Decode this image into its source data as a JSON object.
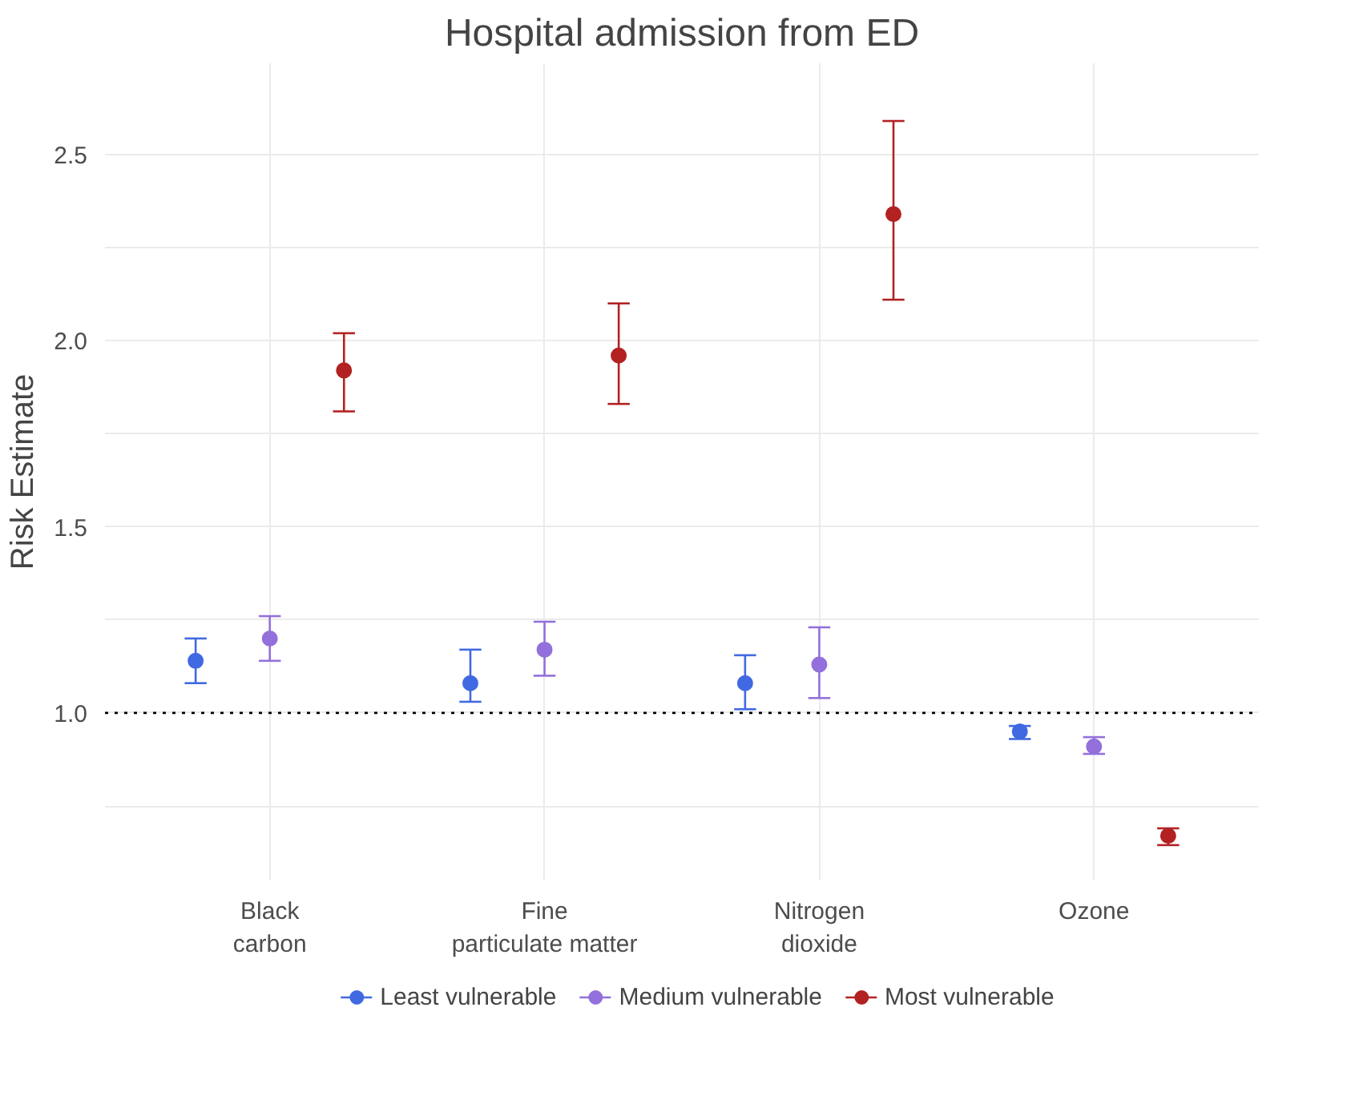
{
  "chart_data": {
    "type": "scatter",
    "title": "Hospital admission from ED",
    "ylabel": "Risk Estimate",
    "categories": [
      "Black\ncarbon",
      "Fine\nparticulate matter",
      "Nitrogen\ndioxide",
      "Ozone"
    ],
    "series": [
      {
        "name": "Least vulnerable",
        "color": "#4169e1",
        "values": [
          1.14,
          1.08,
          1.08,
          0.95
        ],
        "errors": [
          [
            1.08,
            1.2
          ],
          [
            1.03,
            1.17
          ],
          [
            1.01,
            1.155
          ],
          [
            0.93,
            0.965
          ]
        ]
      },
      {
        "name": "Medium vulnerable",
        "color": "#9370db",
        "values": [
          1.2,
          1.17,
          1.13,
          0.91
        ],
        "errors": [
          [
            1.14,
            1.26
          ],
          [
            1.1,
            1.245
          ],
          [
            1.04,
            1.23
          ],
          [
            0.89,
            0.935
          ]
        ]
      },
      {
        "name": "Most vulnerable",
        "color": "#b22222",
        "values": [
          1.92,
          1.96,
          2.34,
          0.67
        ],
        "errors": [
          [
            1.81,
            2.02
          ],
          [
            1.83,
            2.1
          ],
          [
            2.11,
            2.59
          ],
          [
            0.645,
            0.69
          ]
        ]
      }
    ],
    "ylim": [
      0.55,
      2.745
    ],
    "yticks": [
      {
        "value": 0.75,
        "label": null
      },
      {
        "value": 1,
        "label": "1.0"
      },
      {
        "value": 1.25,
        "label": null
      },
      1.5,
      {
        "value": 1.75,
        "label": null
      },
      {
        "value": 2,
        "label": "2.0"
      },
      {
        "value": 2.25,
        "label": null
      },
      2.5
    ],
    "ref_lines": [
      {
        "axis": "y",
        "value": 1.0,
        "color": "#000000",
        "line_style": "dotted"
      }
    ],
    "grid": true,
    "legend": "bottom",
    "marker": "circle"
  }
}
